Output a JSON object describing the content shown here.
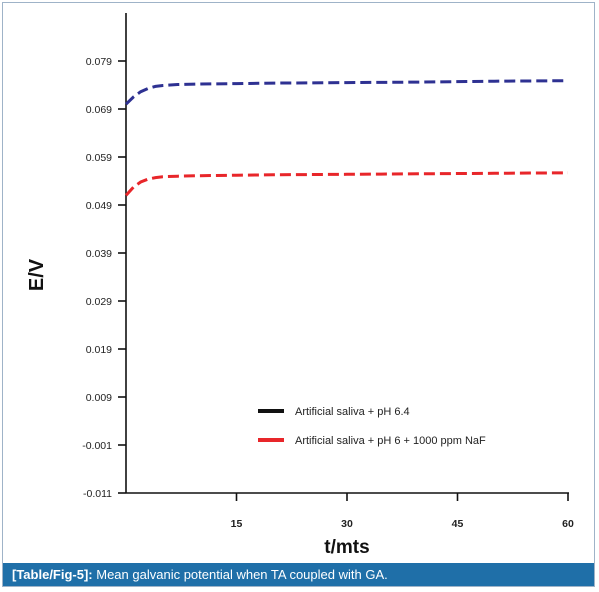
{
  "chart_data": {
    "type": "line",
    "xlabel": "t/mts",
    "ylabel": "E/V",
    "xlim": [
      0,
      60
    ],
    "ylim": [
      -0.011,
      0.089
    ],
    "xticks": [
      15,
      30,
      45,
      60
    ],
    "yticks": [
      0.079,
      0.069,
      0.059,
      0.049,
      0.039,
      0.029,
      0.019,
      0.009,
      -0.001,
      -0.011
    ],
    "ytick_labels": [
      "0.079",
      "0.069",
      "0.059",
      "0.049",
      "0.039",
      "0.029",
      "0.019",
      "0.009",
      "-0.001",
      "-0.011"
    ],
    "grid": false,
    "legend_position": "bottom-right",
    "series": [
      {
        "name": "Artificial saliva + pH 6.4",
        "legend_color": "#111111",
        "color": "#2e3192",
        "x": [
          0,
          1,
          2,
          3,
          4,
          5,
          7,
          10,
          15,
          20,
          30,
          40,
          50,
          60
        ],
        "y": [
          0.07,
          0.0715,
          0.0726,
          0.0733,
          0.0737,
          0.0739,
          0.0741,
          0.0742,
          0.0743,
          0.0744,
          0.0745,
          0.0746,
          0.0748,
          0.0749
        ]
      },
      {
        "name": "Artificial saliva + pH 6 + 1000 ppm NaF",
        "legend_color": "#e8262a",
        "color": "#e8262a",
        "x": [
          0,
          1,
          2,
          3,
          4,
          5,
          7,
          10,
          15,
          20,
          30,
          40,
          50,
          60
        ],
        "y": [
          0.051,
          0.0527,
          0.0538,
          0.0544,
          0.0547,
          0.0549,
          0.055,
          0.0551,
          0.0552,
          0.0553,
          0.0554,
          0.0555,
          0.0556,
          0.0557
        ]
      }
    ]
  },
  "caption": {
    "ref": "[Table/Fig-5]:",
    "text": " Mean galvanic potential when TA coupled with GA."
  }
}
